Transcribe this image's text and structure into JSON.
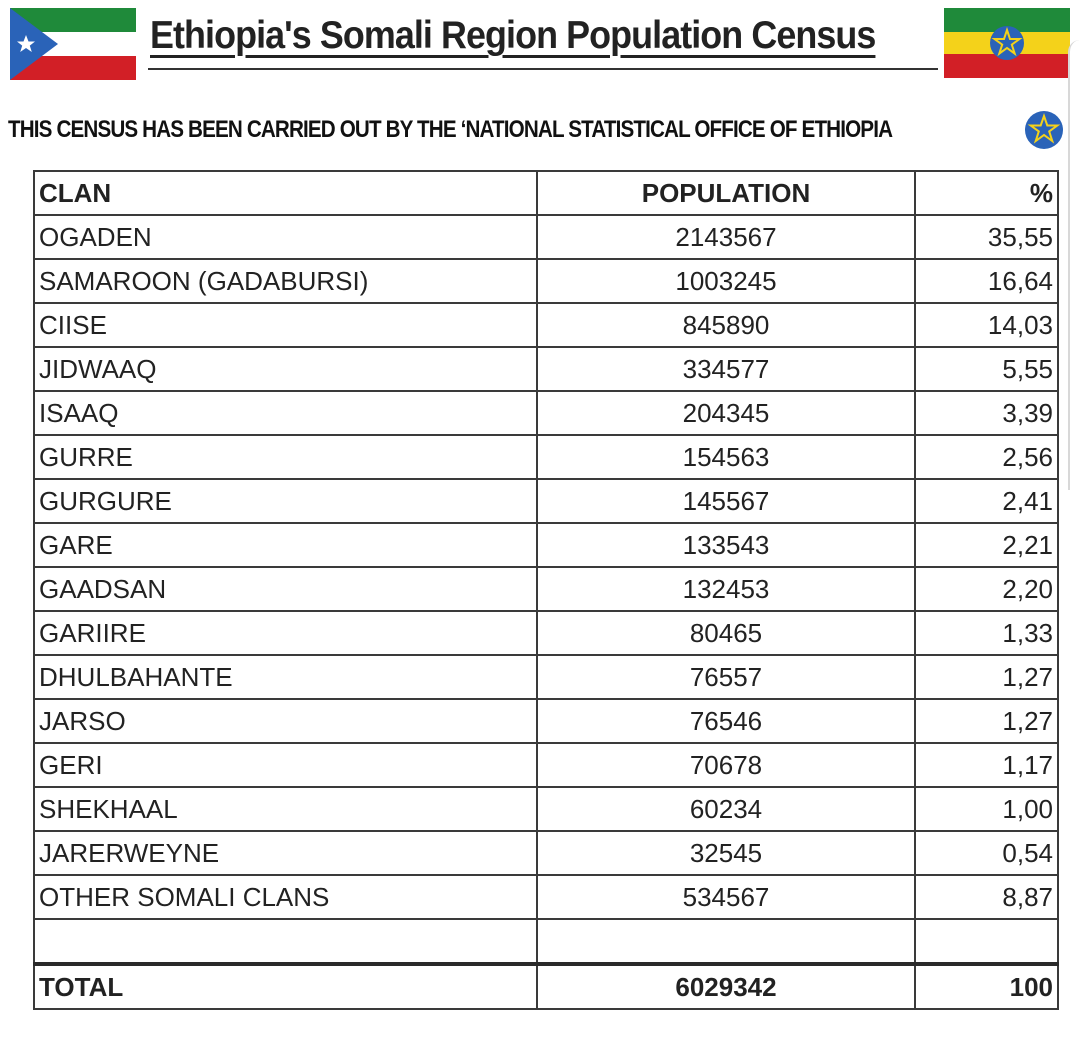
{
  "header": {
    "title": "Ethiopia's Somali Region Population Census",
    "subtitle": "THIS CENSUS HAS BEEN CARRIED OUT BY THE ‘NATIONAL STATISTICAL OFFICE OF ETHIOPIA",
    "left_flag_icon": "somali-region-flag-icon",
    "right_flag_icon": "ethiopia-flag-icon",
    "colors": {
      "green": "#1f8a3a",
      "red": "#d21f26",
      "yellow": "#f4d21a",
      "blue": "#2a63b8"
    }
  },
  "table": {
    "headers": {
      "clan": "CLAN",
      "population": "POPULATION",
      "percent": "%"
    },
    "rows": [
      {
        "clan": "OGADEN",
        "population": "2143567",
        "percent": "35,55"
      },
      {
        "clan": "SAMAROON (GADABURSI)",
        "population": "1003245",
        "percent": "16,64"
      },
      {
        "clan": "CIISE",
        "population": "845890",
        "percent": "14,03"
      },
      {
        "clan": "JIDWAAQ",
        "population": "334577",
        "percent": "5,55"
      },
      {
        "clan": "ISAAQ",
        "population": "204345",
        "percent": "3,39"
      },
      {
        "clan": "GURRE",
        "population": "154563",
        "percent": "2,56"
      },
      {
        "clan": "GURGURE",
        "population": "145567",
        "percent": "2,41"
      },
      {
        "clan": "GARE",
        "population": "133543",
        "percent": "2,21"
      },
      {
        "clan": "GAADSAN",
        "population": "132453",
        "percent": "2,20"
      },
      {
        "clan": "GARIIRE",
        "population": "80465",
        "percent": "1,33"
      },
      {
        "clan": "DHULBAHANTE",
        "population": "76557",
        "percent": "1,27"
      },
      {
        "clan": "JARSO",
        "population": "76546",
        "percent": "1,27"
      },
      {
        "clan": "GERI",
        "population": "70678",
        "percent": "1,17"
      },
      {
        "clan": "SHEKHAAL",
        "population": "60234",
        "percent": "1,00"
      },
      {
        "clan": "JARERWEYNE",
        "population": "32545",
        "percent": "0,54"
      },
      {
        "clan": "OTHER SOMALI CLANS",
        "population": "534567",
        "percent": "8,87"
      }
    ],
    "total": {
      "clan": "TOTAL",
      "population": "6029342",
      "percent": "100"
    }
  }
}
